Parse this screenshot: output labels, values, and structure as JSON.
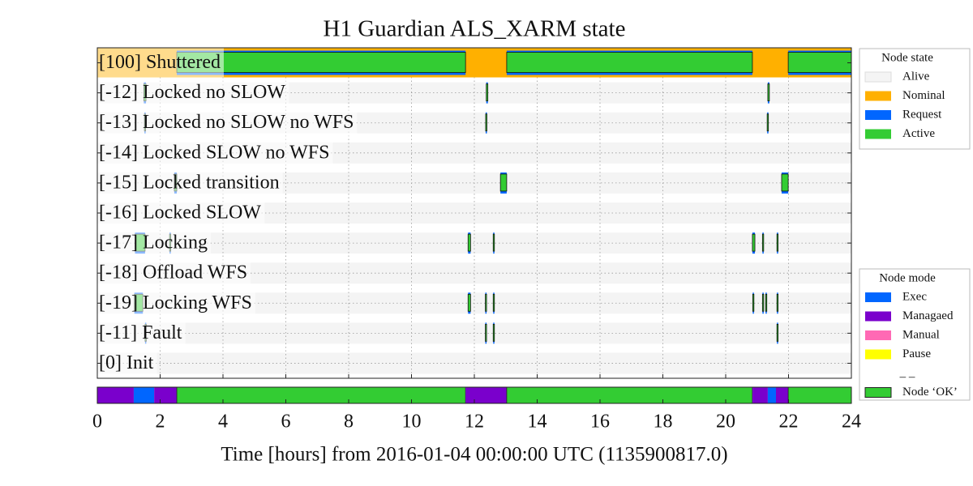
{
  "chart_data": {
    "type": "timeline",
    "title": "H1 Guardian ALS_XARM state",
    "x_label": "Time [hours] from 2016-01-04 00:00:00 UTC (1135900817.0)",
    "xlim": [
      0,
      24
    ],
    "xticks": [
      0,
      2,
      4,
      6,
      8,
      10,
      12,
      14,
      16,
      18,
      20,
      22,
      24
    ],
    "grid": true,
    "alive_color": "#f4f4f4",
    "nominal_color": "#ffb000",
    "active_color": "#33cc33",
    "request_color": "#0066ff",
    "rows": [
      {
        "label": "[100] Shuttered",
        "nominal": [
          0,
          24
        ],
        "segments": [
          [
            2.53,
            11.72
          ],
          [
            13.03,
            20.85
          ],
          [
            21.99,
            24
          ]
        ]
      },
      {
        "label": "[-12] Locked no SLOW",
        "segments": [
          [
            1.48,
            1.55
          ],
          [
            12.38,
            12.43
          ],
          [
            21.34,
            21.39
          ]
        ]
      },
      {
        "label": "[-13] Locked no SLOW no WFS",
        "segments": [
          [
            1.5,
            1.53
          ],
          [
            12.36,
            12.4
          ],
          [
            21.32,
            21.36
          ]
        ]
      },
      {
        "label": "[-14] Locked SLOW no WFS",
        "segments": []
      },
      {
        "label": "[-15] Locked transition",
        "segments": [
          [
            2.45,
            2.53
          ],
          [
            12.83,
            13.03
          ],
          [
            21.78,
            21.99
          ]
        ]
      },
      {
        "label": "[-16] Locked SLOW",
        "segments": []
      },
      {
        "label": "[-17] Locking",
        "segments": [
          [
            1.2,
            1.52
          ],
          [
            2.3,
            2.33
          ],
          [
            11.8,
            11.88
          ],
          [
            12.6,
            12.63
          ],
          [
            20.85,
            20.93
          ],
          [
            21.17,
            21.2
          ],
          [
            21.63,
            21.66
          ]
        ]
      },
      {
        "label": "[-18] Offload WFS",
        "segments": []
      },
      {
        "label": "[-19] Locking WFS",
        "segments": [
          [
            1.18,
            1.45
          ],
          [
            11.8,
            11.88
          ],
          [
            12.35,
            12.38
          ],
          [
            12.6,
            12.63
          ],
          [
            20.86,
            20.89
          ],
          [
            21.17,
            21.2
          ],
          [
            21.27,
            21.3
          ],
          [
            21.63,
            21.66
          ]
        ]
      },
      {
        "label": "[-11] Fault",
        "segments": [
          [
            1.52,
            1.55
          ],
          [
            12.35,
            12.38
          ],
          [
            12.6,
            12.63
          ],
          [
            21.63,
            21.66
          ]
        ]
      },
      {
        "label": "[0] Init",
        "segments": []
      }
    ],
    "mode_bar": [
      {
        "start": 0,
        "end": 1.16,
        "color": "#7a00cc"
      },
      {
        "start": 1.16,
        "end": 1.81,
        "color": "#0066ff"
      },
      {
        "start": 1.81,
        "end": 2.53,
        "color": "#7a00cc"
      },
      {
        "start": 2.53,
        "end": 11.72,
        "color": "#33cc33"
      },
      {
        "start": 11.72,
        "end": 13.03,
        "color": "#7a00cc"
      },
      {
        "start": 13.03,
        "end": 20.85,
        "color": "#33cc33"
      },
      {
        "start": 20.85,
        "end": 21.34,
        "color": "#7a00cc"
      },
      {
        "start": 21.34,
        "end": 21.6,
        "color": "#0066ff"
      },
      {
        "start": 21.6,
        "end": 21.99,
        "color": "#7a00cc"
      },
      {
        "start": 21.99,
        "end": 24,
        "color": "#33cc33"
      }
    ],
    "legends": [
      {
        "title": "Node state",
        "items": [
          {
            "name": "Alive",
            "color": "#f4f4f4"
          },
          {
            "name": "Nominal",
            "color": "#ffb000"
          },
          {
            "name": "Request",
            "color": "#0066ff"
          },
          {
            "name": "Active",
            "color": "#33cc33"
          }
        ]
      },
      {
        "title": "Node mode",
        "items": [
          {
            "name": "Exec",
            "color": "#0066ff"
          },
          {
            "name": "Managaed",
            "color": "#7a00cc"
          },
          {
            "name": "Manual",
            "color": "#ff69b4"
          },
          {
            "name": "Pause",
            "color": "#ffff00"
          },
          {
            "name": "_ _"
          },
          {
            "name": "Node ‘OK’",
            "color": "#33cc33"
          }
        ]
      }
    ]
  }
}
